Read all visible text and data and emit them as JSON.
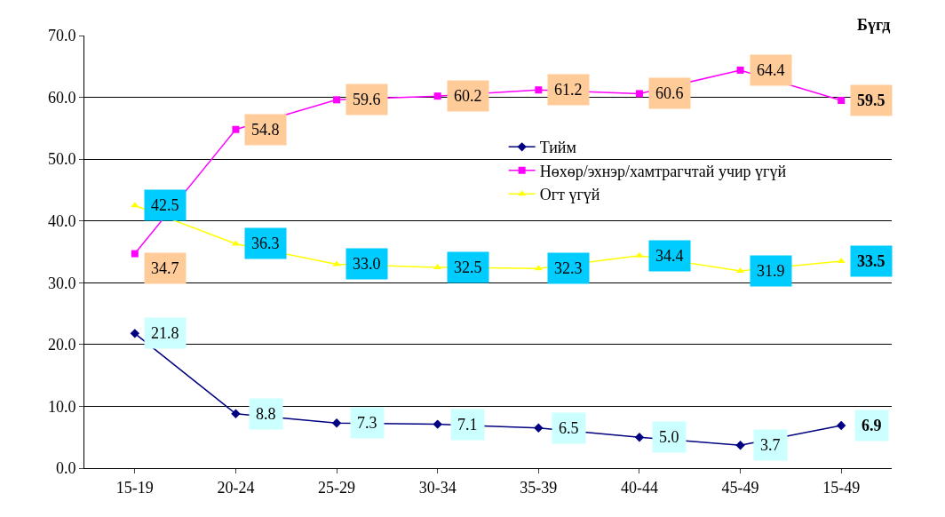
{
  "chart_data": {
    "type": "line",
    "categories": [
      "15-19",
      "20-24",
      "25-29",
      "30-34",
      "35-39",
      "40-44",
      "45-49",
      "15-49"
    ],
    "series": [
      {
        "name": "Тийм",
        "color": "#000080",
        "values": [
          21.8,
          8.8,
          7.3,
          7.1,
          6.5,
          5.0,
          3.7,
          6.9
        ],
        "value_labels": [
          "21.8",
          "8.8",
          "7.3",
          "7.1",
          "6.5",
          "5.0",
          "3.7",
          "6.9"
        ],
        "marker": "diamond"
      },
      {
        "name": "Нөхөр/эхнэр/хамтрагчтай учир үгүй",
        "color": "#ff00ff",
        "values": [
          34.7,
          54.8,
          59.6,
          60.2,
          61.2,
          60.6,
          64.4,
          59.5
        ],
        "value_labels": [
          "34.7",
          "54.8",
          "59.6",
          "60.2",
          "61.2",
          "60.6",
          "64.4",
          "59.5"
        ],
        "marker": "square"
      },
      {
        "name": "Огт үгүй",
        "color": "#ffff00",
        "values": [
          42.5,
          36.3,
          33.0,
          32.5,
          32.3,
          34.4,
          31.9,
          33.5
        ],
        "value_labels": [
          "42.5",
          "36.3",
          "33.0",
          "32.5",
          "32.3",
          "34.4",
          "31.9",
          "33.5"
        ],
        "marker": "triangle"
      }
    ],
    "ylim": [
      0,
      70
    ],
    "yticks": [
      {
        "value": 0,
        "label": "0.0"
      },
      {
        "value": 10,
        "label": "10.0"
      },
      {
        "value": 20,
        "label": "20.0"
      },
      {
        "value": 30,
        "label": "30.0"
      },
      {
        "value": 40,
        "label": "40.0"
      },
      {
        "value": 50,
        "label": "50.0"
      },
      {
        "value": 60,
        "label": "60.0"
      },
      {
        "value": 70,
        "label": "70.0"
      }
    ],
    "grid": "y",
    "legend": "top right",
    "line_style": "solid",
    "annotations": [
      "Бүгд"
    ]
  }
}
